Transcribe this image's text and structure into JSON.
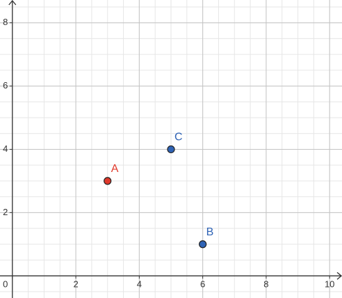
{
  "chart_data": {
    "type": "scatter",
    "x": [
      3,
      6,
      5
    ],
    "values": [
      3,
      1,
      4
    ],
    "point_labels": [
      "A",
      "B",
      "C"
    ],
    "colors": [
      "#e0392b",
      "#2f63b5",
      "#2f63b5"
    ],
    "xlim": [
      -0.39,
      10.39
    ],
    "ylim": [
      -0.7,
      8.72
    ],
    "xticks": [
      0,
      2,
      4,
      6,
      8,
      10
    ],
    "yticks": [
      2,
      4,
      6,
      8
    ],
    "grid": true
  }
}
